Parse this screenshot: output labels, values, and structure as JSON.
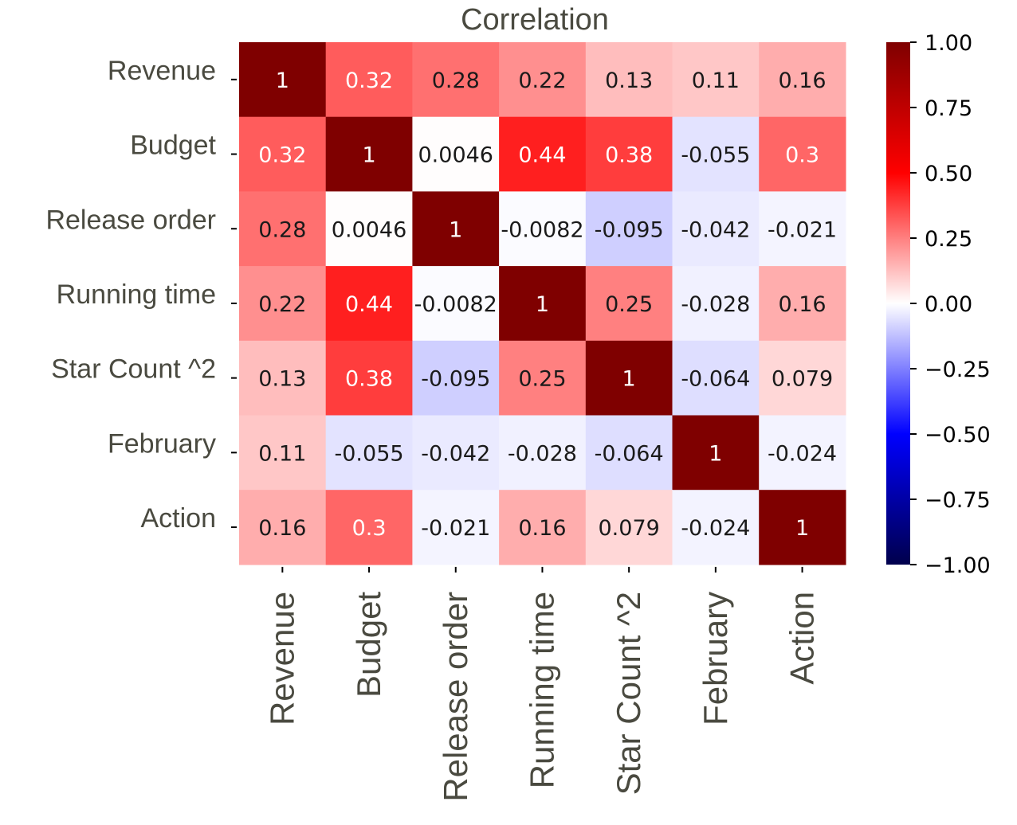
{
  "chart_data": {
    "type": "heatmap",
    "title": "Correlation",
    "row_labels": [
      "Revenue",
      "Budget",
      "Release order",
      "Running time",
      "Star Count ^2",
      "February",
      "Action"
    ],
    "col_labels": [
      "Revenue",
      "Budget",
      "Release order",
      "Running time",
      "Star Count ^2",
      "February",
      "Action"
    ],
    "values": [
      [
        1,
        0.32,
        0.28,
        0.22,
        0.13,
        0.11,
        0.16
      ],
      [
        0.32,
        1,
        0.0046,
        0.44,
        0.38,
        -0.055,
        0.3
      ],
      [
        0.28,
        0.0046,
        1,
        -0.0082,
        -0.095,
        -0.042,
        -0.021
      ],
      [
        0.22,
        0.44,
        -0.0082,
        1,
        0.25,
        -0.028,
        0.16
      ],
      [
        0.13,
        0.38,
        -0.095,
        0.25,
        1,
        -0.064,
        0.079
      ],
      [
        0.11,
        -0.055,
        -0.042,
        -0.028,
        -0.064,
        1,
        -0.024
      ],
      [
        0.16,
        0.3,
        -0.021,
        0.16,
        0.079,
        -0.024,
        1
      ]
    ],
    "vmin": -1,
    "vmax": 1,
    "colormap": "seismic",
    "colorbar_ticks": [
      1,
      0.75,
      0.5,
      0.25,
      0,
      -0.25,
      -0.5,
      -0.75,
      -1
    ],
    "colorbar_tick_labels": [
      "1.00",
      "0.75",
      "0.50",
      "0.25",
      "0.00",
      "−0.25",
      "−0.50",
      "−0.75",
      "−1.00"
    ]
  },
  "colors": {
    "label_text": "#4a4a40",
    "tick_color": "#000000"
  }
}
